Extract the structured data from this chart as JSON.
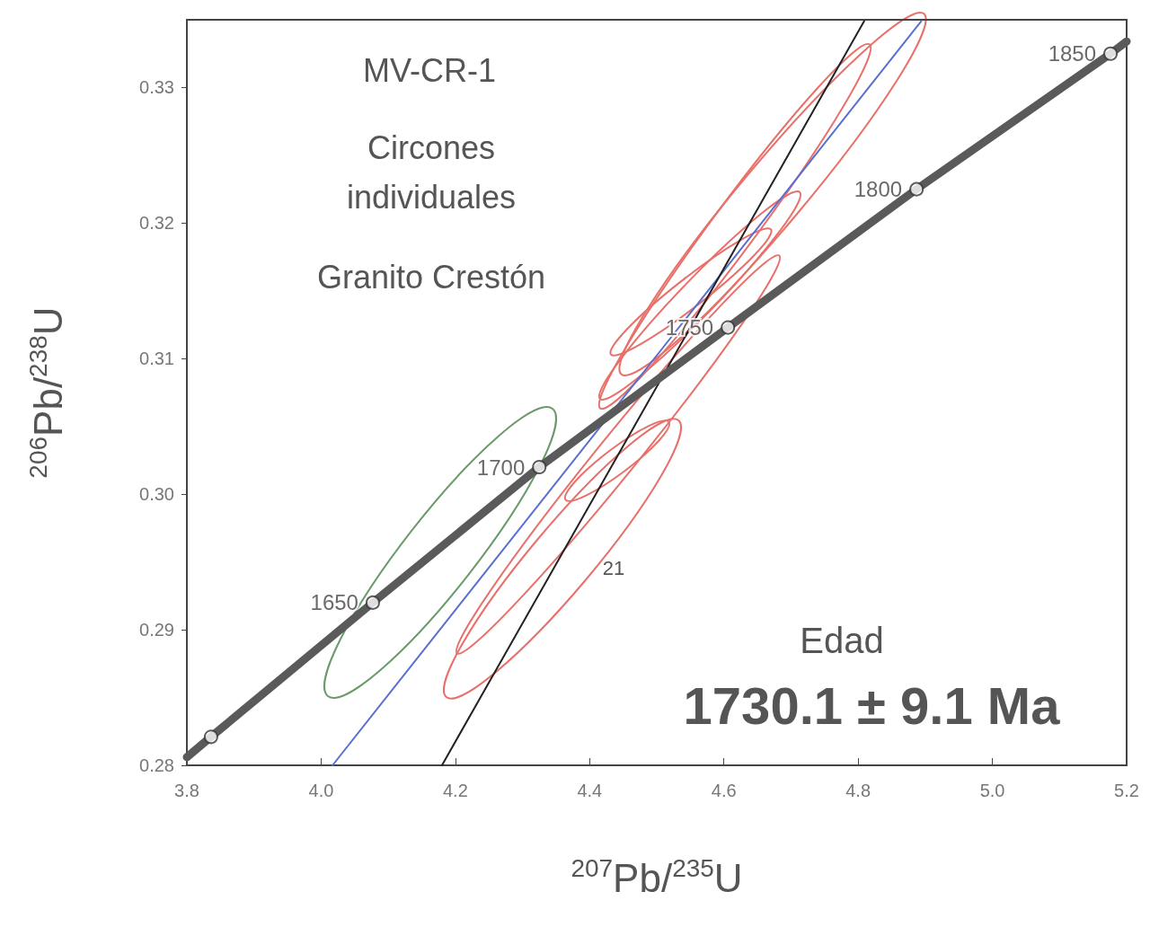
{
  "chart_data": {
    "type": "scatter",
    "xlabel": "$^{207}$Pb/$^{235}$U",
    "ylabel": "$^{206}$Pb/$^{238}$U",
    "xlim": [
      3.8,
      5.2
    ],
    "ylim": [
      0.28,
      0.335
    ],
    "xticks": [
      {
        "value": 3.8,
        "label": "3.8"
      },
      {
        "value": 4.0,
        "label": "4.0"
      },
      {
        "value": 4.2,
        "label": "4.2"
      },
      {
        "value": 4.4,
        "label": "4.4"
      },
      {
        "value": 4.6,
        "label": "4.6"
      },
      {
        "value": 4.8,
        "label": "4.8"
      },
      {
        "value": 5.0,
        "label": "5.0"
      },
      {
        "value": 5.2,
        "label": "5.2"
      }
    ],
    "yticks": [
      {
        "value": 0.28,
        "label": "0.28"
      },
      {
        "value": 0.29,
        "label": "0.29"
      },
      {
        "value": 0.3,
        "label": "0.30"
      },
      {
        "value": 0.31,
        "label": "0.31"
      },
      {
        "value": 0.32,
        "label": "0.32"
      },
      {
        "value": 0.33,
        "label": "0.33"
      }
    ],
    "grid": false,
    "series": [
      {
        "type": "line",
        "color": "#5a6fd0",
        "x": [
          4.017,
          4.894
        ],
        "values": [
          0.28,
          0.3349
        ]
      },
      {
        "type": "line",
        "color": "#222222",
        "x": [
          4.18,
          4.809
        ],
        "values": [
          0.28,
          0.3349
        ]
      },
      {
        "type": "line",
        "color": "#5a5a5a",
        "x": [
          3.8,
          3.836,
          4.077,
          4.325,
          4.606,
          4.887,
          5.176,
          5.2
        ],
        "values": [
          0.2806,
          0.2821,
          0.292,
          0.302,
          0.3123,
          0.3225,
          0.3325,
          0.3334
        ]
      },
      {
        "color": "#333333",
        "marker": "circle",
        "x": [
          3.836,
          4.077,
          4.325,
          4.606,
          4.887,
          5.176
        ],
        "values": [
          0.2821,
          0.292,
          0.302,
          0.3123,
          0.3225,
          0.3325
        ]
      }
    ],
    "annotations": [
      "MV-CR-1",
      "Circones\nindividuales",
      "Granito Crestón",
      "Edad",
      "1730.1 ± 9.1 Ma",
      "21",
      {
        "text": "1650",
        "x": 4.077,
        "y": 0.292
      },
      {
        "text": "1700",
        "x": 4.325,
        "y": 0.302
      },
      {
        "text": "1750",
        "x": 4.606,
        "y": 0.3123
      },
      {
        "text": "1800",
        "x": 4.887,
        "y": 0.3225
      },
      {
        "text": "1850",
        "x": 5.176,
        "y": 0.3325
      }
    ]
  }
}
